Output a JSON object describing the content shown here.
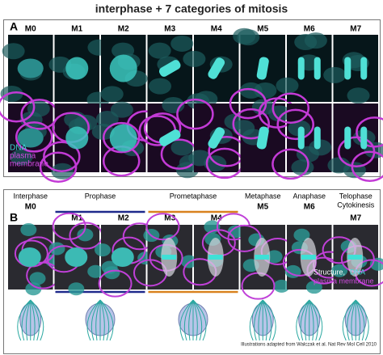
{
  "title": "interphase + 7 categories of mitosis",
  "panel_a": {
    "label": "A",
    "columns": [
      "M0",
      "M1",
      "M2",
      "M3",
      "M4",
      "M5",
      "M6",
      "M7"
    ],
    "legend": [
      "DNA",
      "plasma",
      "membrane"
    ]
  },
  "panel_b": {
    "label": "B",
    "groups": [
      {
        "names": [
          "Interphase"
        ],
        "codes": [
          "M0"
        ]
      },
      {
        "names": [
          "Prophase"
        ],
        "codes": [
          "M1",
          "M2"
        ],
        "color": "#1f2a8c"
      },
      {
        "names": [
          "Prometaphase"
        ],
        "codes": [
          "M3",
          "M4"
        ],
        "color": "#d9821f"
      },
      {
        "names": [
          "Metaphase"
        ],
        "codes": [
          "M5"
        ]
      },
      {
        "names": [
          "Anaphase"
        ],
        "codes": [
          "M6"
        ]
      },
      {
        "names": [
          "Telophase",
          "Cytokinesis"
        ],
        "codes": [
          "M7"
        ]
      }
    ],
    "legend": [
      "Structure,",
      "DNA",
      "plasma membrane"
    ],
    "credit": "Illustrations adapted from Walczak et al. Nat Rev Mol Cell 2010"
  }
}
